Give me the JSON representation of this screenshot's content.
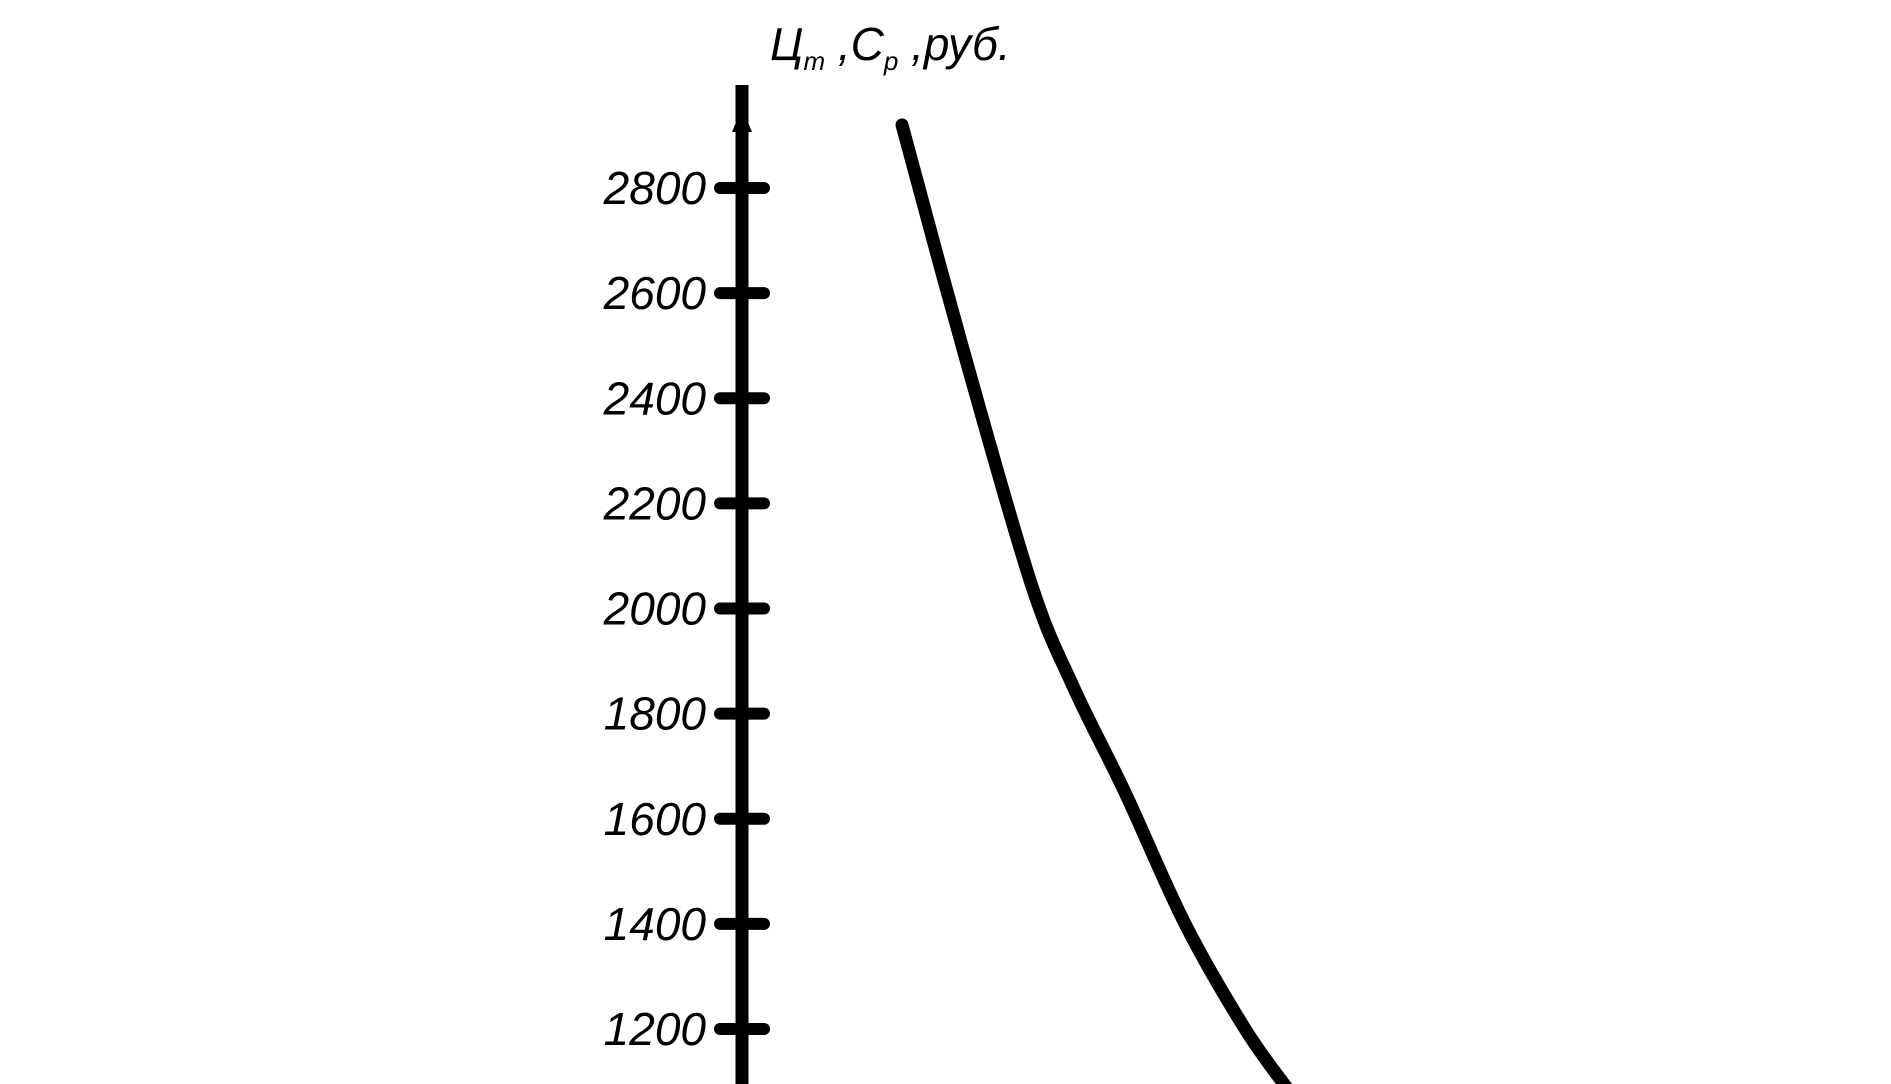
{
  "chart_data": {
    "type": "line",
    "title": "",
    "xlabel": "",
    "ylabel": {
      "part1": "Ц",
      "sub1": "т",
      "part2": " ,С",
      "sub2": "р",
      "part3": " ,руб."
    },
    "ylim": [
      1000,
      3000
    ],
    "yticks": [
      1200,
      1400,
      1600,
      1800,
      2000,
      2200,
      2400,
      2600,
      2800
    ],
    "ytick_labels": [
      "1200",
      "1400",
      "1600",
      "1800",
      "2000",
      "2200",
      "2400",
      "2600",
      "2800"
    ],
    "grid": false,
    "legend": "none",
    "series": [
      {
        "color": "#000000",
        "points": [
          {
            "x": 0.0,
            "y": 2920
          },
          {
            "x": 0.07,
            "y": 2500
          },
          {
            "x": 0.15,
            "y": 2050
          },
          {
            "x": 0.2,
            "y": 1850
          },
          {
            "x": 0.26,
            "y": 1650
          },
          {
            "x": 0.33,
            "y": 1400
          },
          {
            "x": 0.4,
            "y": 1200
          },
          {
            "x": 0.45,
            "y": 1085
          }
        ]
      }
    ]
  }
}
